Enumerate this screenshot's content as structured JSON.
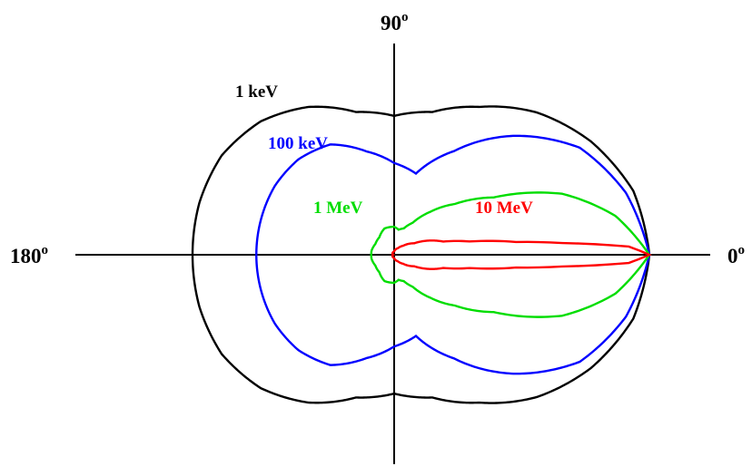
{
  "chart_data": {
    "type": "polar-line",
    "title": "",
    "angle_labels": [
      {
        "deg": "0",
        "sup": "o",
        "angle": 0
      },
      {
        "deg": "90",
        "sup": "o",
        "angle": 90
      },
      {
        "deg": "180",
        "sup": "o",
        "angle": 180
      }
    ],
    "r_max": 1.0,
    "series": [
      {
        "name": "1 keV",
        "color": "#000000",
        "points": [
          [
            0,
            1.0
          ],
          [
            15,
            0.97
          ],
          [
            30,
            0.89
          ],
          [
            45,
            0.79
          ],
          [
            60,
            0.67
          ],
          [
            75,
            0.58
          ],
          [
            90,
            0.545
          ],
          [
            105,
            0.58
          ],
          [
            120,
            0.67
          ],
          [
            135,
            0.74
          ],
          [
            150,
            0.78
          ],
          [
            165,
            0.79
          ],
          [
            180,
            0.79
          ]
        ]
      },
      {
        "name": "100 keV",
        "color": "#0000ff",
        "points": [
          [
            0,
            1.0
          ],
          [
            15,
            0.94
          ],
          [
            30,
            0.84
          ],
          [
            45,
            0.66
          ],
          [
            60,
            0.47
          ],
          [
            75,
            0.33
          ],
          [
            90,
            0.36
          ],
          [
            105,
            0.42
          ],
          [
            120,
            0.5
          ],
          [
            135,
            0.53
          ],
          [
            150,
            0.54
          ],
          [
            165,
            0.54
          ],
          [
            180,
            0.54
          ]
        ]
      },
      {
        "name": "1 MeV",
        "color": "#00dd00",
        "points": [
          [
            0,
            1.0
          ],
          [
            10,
            0.88
          ],
          [
            20,
            0.7
          ],
          [
            30,
            0.45
          ],
          [
            40,
            0.31
          ],
          [
            50,
            0.22
          ],
          [
            60,
            0.145
          ],
          [
            70,
            0.11
          ],
          [
            80,
            0.1
          ],
          [
            90,
            0.11
          ],
          [
            110,
            0.11
          ],
          [
            130,
            0.09
          ],
          [
            150,
            0.085
          ],
          [
            170,
            0.09
          ],
          [
            180,
            0.09
          ]
        ]
      },
      {
        "name": "10 MeV",
        "color": "#ff0000",
        "points": [
          [
            0,
            1.0
          ],
          [
            2,
            0.92
          ],
          [
            4,
            0.66
          ],
          [
            6,
            0.48
          ],
          [
            10,
            0.3
          ],
          [
            15,
            0.2
          ],
          [
            30,
            0.09
          ],
          [
            45,
            0.05
          ],
          [
            60,
            0.03
          ],
          [
            90,
            0.013
          ],
          [
            180,
            0.005
          ]
        ]
      }
    ]
  }
}
